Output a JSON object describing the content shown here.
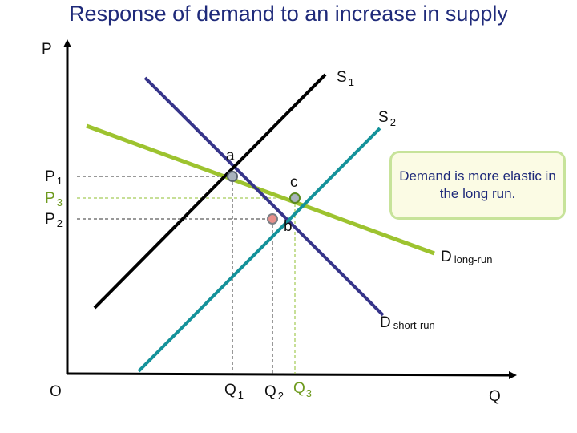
{
  "title": "Response of demand to an increase in supply",
  "axes": {
    "y_label": "P",
    "x_label": "Q",
    "origin_label": "O"
  },
  "curves": {
    "s1": {
      "label": "S",
      "sub": "1",
      "color": "#000000"
    },
    "s2": {
      "label": "S",
      "sub": "2",
      "color": "#14929a"
    },
    "d_short": {
      "label": "D",
      "sub": "short-run",
      "color": "#36348a"
    },
    "d_long": {
      "label": "D",
      "sub": "long-run",
      "color": "#9dc32f"
    }
  },
  "points": {
    "a": {
      "label": "a"
    },
    "b": {
      "label": "b"
    },
    "c": {
      "label": "c"
    }
  },
  "price_labels": [
    {
      "label": "P",
      "sub": "1",
      "color": "#111111"
    },
    {
      "label": "P",
      "sub": "3",
      "color": "#6e9a1e"
    },
    {
      "label": "P",
      "sub": "2",
      "color": "#111111"
    }
  ],
  "quantity_labels": [
    {
      "label": "Q",
      "sub": "1",
      "color": "#111111"
    },
    {
      "label": "Q",
      "sub": "2",
      "color": "#111111"
    },
    {
      "label": "Q",
      "sub": "3",
      "color": "#6e9a1e"
    }
  ],
  "note": "Demand is more elastic in the long run."
}
